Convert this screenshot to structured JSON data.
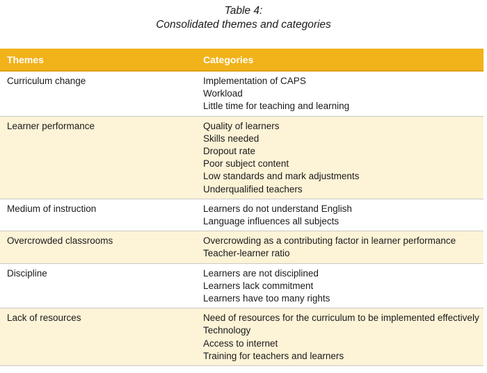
{
  "caption": {
    "line1": "Table 4:",
    "line2": "Consolidated themes and categories"
  },
  "table": {
    "headers": [
      "Themes",
      "Categories"
    ],
    "header_color": "#f2b21a",
    "shade_color": "#fdf3d7",
    "rows": [
      {
        "theme": "Curriculum change",
        "categories": [
          "Implementation of CAPS",
          "Workload",
          "Little time for teaching and learning"
        ]
      },
      {
        "theme": "Learner performance",
        "categories": [
          "Quality of learners",
          "Skills needed",
          "Dropout rate",
          "Poor subject content",
          "Low standards and mark adjustments",
          "Underqualified teachers"
        ]
      },
      {
        "theme": "Medium of instruction",
        "categories": [
          "Learners do not understand English",
          "Language influences all subjects"
        ]
      },
      {
        "theme": "Overcrowded classrooms",
        "categories": [
          "Overcrowding as a contributing factor in learner performance",
          "Teacher-learner ratio"
        ]
      },
      {
        "theme": "Discipline",
        "categories": [
          "Learners are not disciplined",
          "Learners lack commitment",
          "Learners have too many rights"
        ]
      },
      {
        "theme": "Lack of resources",
        "categories": [
          "Need of resources for the curriculum to be implemented effectively",
          "Technology",
          "Access to internet",
          "Training for teachers and learners"
        ]
      }
    ]
  }
}
